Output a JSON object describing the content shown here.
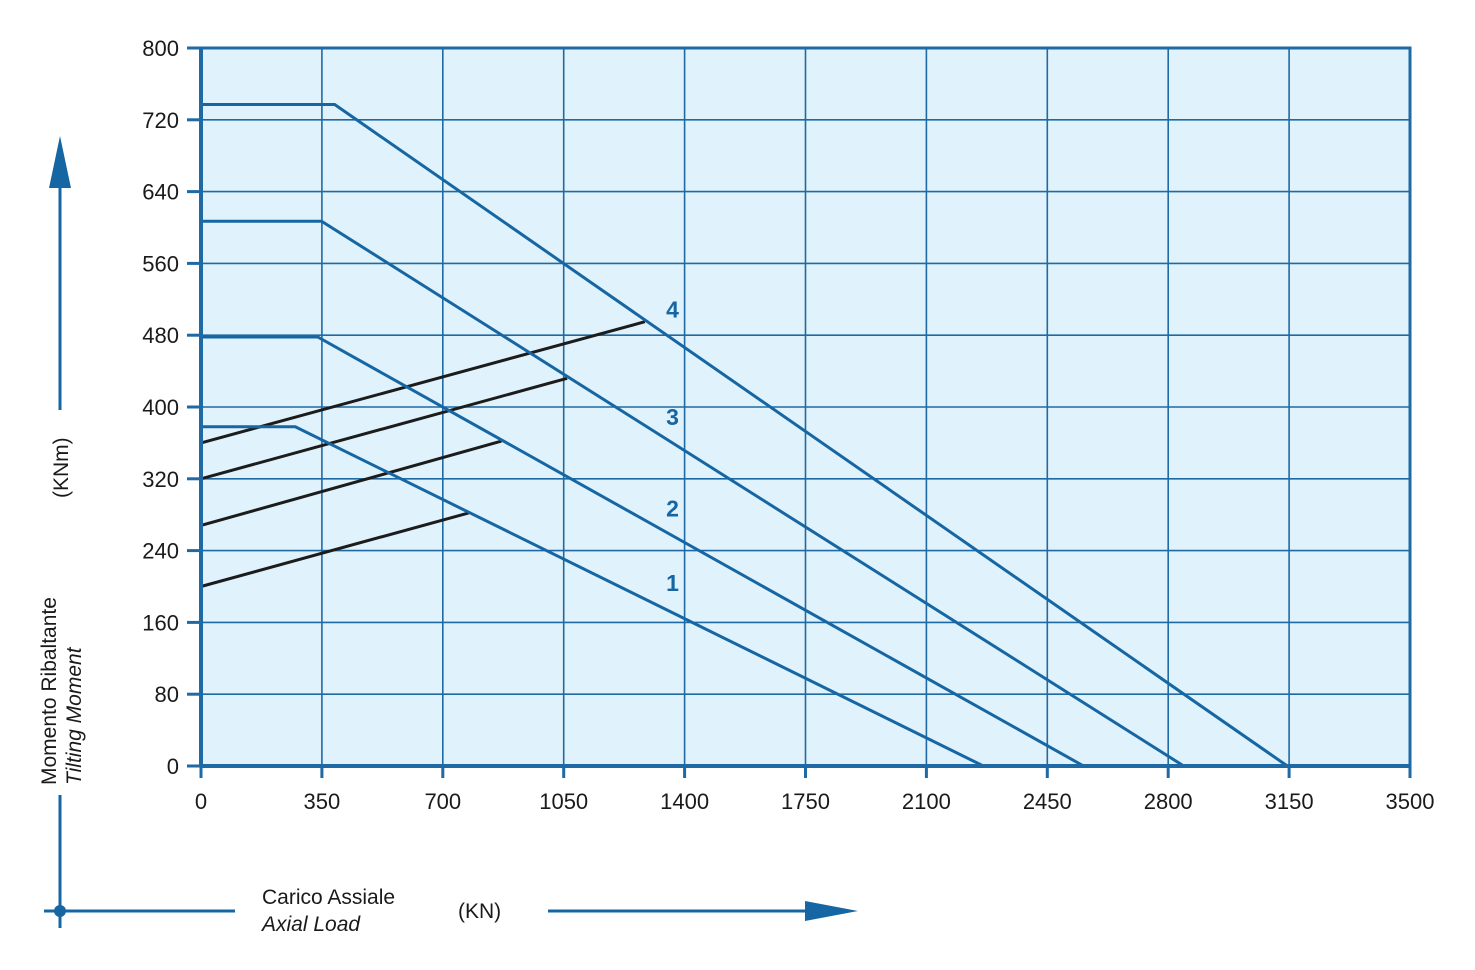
{
  "chart_data": {
    "type": "line",
    "x_axis": {
      "label": "Carico Assiale",
      "label_alt": "Axial Load",
      "unit": "(KN)",
      "range": [
        0,
        3500
      ],
      "ticks": [
        0,
        350,
        700,
        1050,
        1400,
        1750,
        2100,
        2450,
        2800,
        3150,
        3500
      ],
      "tick_labels": [
        "0",
        "350",
        "700",
        "1050",
        "1400",
        "1750",
        "2100",
        "2450",
        "2800",
        "3150",
        "3500"
      ]
    },
    "y_axis": {
      "label": "Momento Ribaltante",
      "label_alt": "Tilting Moment",
      "unit": "(KNm)",
      "range": [
        0,
        800
      ],
      "ticks": [
        0,
        80,
        160,
        240,
        320,
        400,
        480,
        560,
        640,
        720,
        800
      ],
      "tick_labels": [
        "0",
        "80",
        "160",
        "240",
        "320",
        "400",
        "480",
        "560",
        "640",
        "720",
        "800"
      ]
    },
    "grid": true,
    "colors": {
      "plot_background": "#e0f2fb",
      "grid": "#1f6aa5",
      "curve": "#1666a3",
      "aux_line": "#1c1c1c",
      "label": "#1666a3"
    },
    "series": [
      {
        "label": "1",
        "points": [
          [
            0,
            378
          ],
          [
            273,
            378
          ],
          [
            2265,
            0
          ]
        ]
      },
      {
        "label": "2",
        "points": [
          [
            0,
            478
          ],
          [
            338,
            478
          ],
          [
            2555,
            0
          ]
        ]
      },
      {
        "label": "3",
        "points": [
          [
            0,
            607
          ],
          [
            349,
            607
          ],
          [
            2845,
            0
          ]
        ]
      },
      {
        "label": "4",
        "points": [
          [
            0,
            737
          ],
          [
            387,
            737
          ],
          [
            3145,
            0
          ]
        ]
      }
    ],
    "series_label_positions": [
      [
        1365,
        195
      ],
      [
        1365,
        278
      ],
      [
        1365,
        380
      ],
      [
        1365,
        500
      ]
    ],
    "aux_lines": [
      {
        "points": [
          [
            0,
            200
          ],
          [
            775,
            282
          ]
        ]
      },
      {
        "points": [
          [
            0,
            268
          ],
          [
            870,
            362
          ]
        ]
      },
      {
        "points": [
          [
            0,
            320
          ],
          [
            1060,
            432
          ]
        ]
      },
      {
        "points": [
          [
            0,
            360
          ],
          [
            1285,
            495
          ]
        ]
      }
    ]
  }
}
